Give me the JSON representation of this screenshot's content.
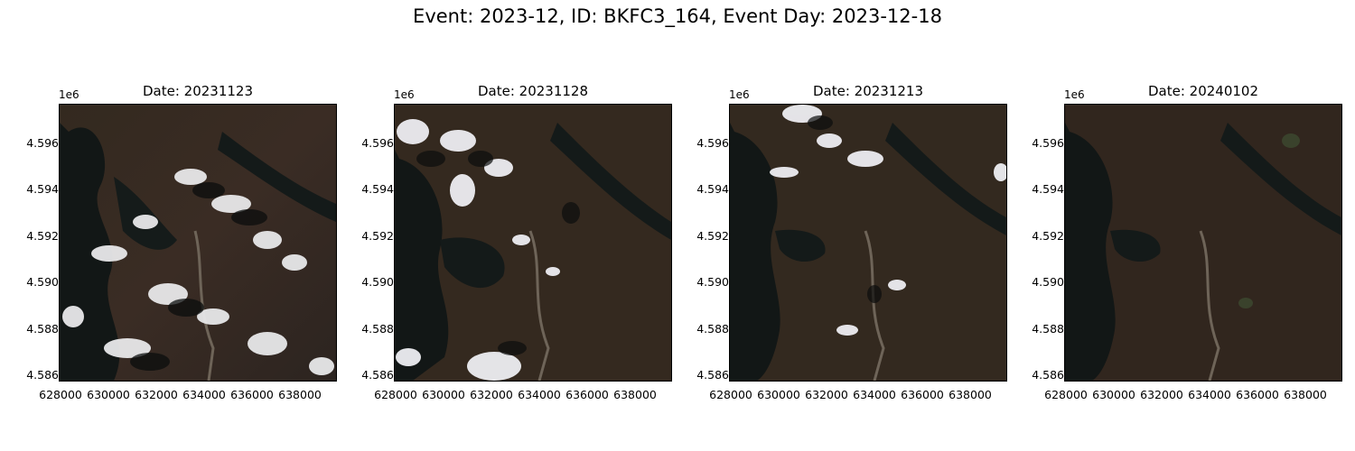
{
  "figure": {
    "suptitle": "Event: 2023-12, ID: BKFC3_164, Event Day: 2023-12-18"
  },
  "axes": {
    "y_offset_label": "1e6",
    "y_ticks": [
      "4.596",
      "4.594",
      "4.592",
      "4.590",
      "4.588",
      "4.586"
    ],
    "x_ticks": [
      "628000",
      "630000",
      "632000",
      "634000",
      "636000",
      "638000"
    ]
  },
  "panels": [
    {
      "title": "Date: 20231123",
      "cloud_cover": "heavy"
    },
    {
      "title": "Date: 20231128",
      "cloud_cover": "moderate"
    },
    {
      "title": "Date: 20231213",
      "cloud_cover": "light"
    },
    {
      "title": "Date: 20240102",
      "cloud_cover": "clear"
    }
  ]
}
